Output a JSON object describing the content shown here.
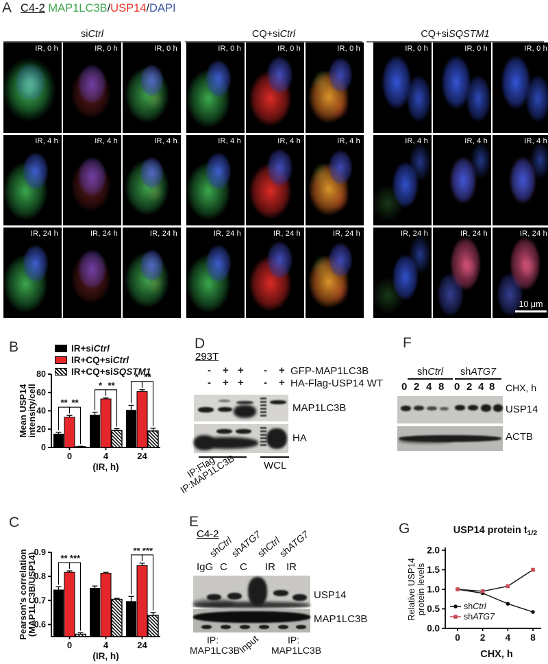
{
  "colors": {
    "red_bar": "#e5262b",
    "line_red": "#c94b57",
    "stain_green": "#3fa54e",
    "stain_red": "#e8332a",
    "stain_blue": "#3a53a4"
  },
  "panel_a": {
    "label": "A",
    "cell_line": "C4-2",
    "stains": {
      "s1": "MAP1LC3B",
      "sep1": "/",
      "s2": "USP14",
      "sep2": "/",
      "s3": "DAPI"
    },
    "groups": [
      {
        "segments": [
          {
            "t": "si"
          },
          {
            "t": "Ctrl",
            "i": true
          }
        ]
      },
      {
        "segments": [
          {
            "t": "CQ+si"
          },
          {
            "t": "Ctrl",
            "i": true
          }
        ]
      },
      {
        "segments": [
          {
            "t": "CQ+si"
          },
          {
            "t": "SQSTM1",
            "i": true
          }
        ]
      }
    ],
    "tiles": [
      {
        "label": "IR, 0 h",
        "look": "green"
      },
      {
        "label": "IR, 0 h",
        "look": "redNuc"
      },
      {
        "label": "IR, 0 h",
        "look": "greenMix"
      },
      {
        "label": "IR, 0 h",
        "look": "greenBlue"
      },
      {
        "label": "IR, 0 h",
        "look": "redCyto"
      },
      {
        "label": "IR, 0 h",
        "look": "orange"
      },
      {
        "label": "IR, 0 h",
        "look": "blue"
      },
      {
        "label": "IR, 0 h",
        "look": "blue"
      },
      {
        "label": "IR, 0 h",
        "look": "blue"
      },
      {
        "label": "IR, 4 h",
        "look": "greenBlue"
      },
      {
        "label": "IR, 4 h",
        "look": "redNuc"
      },
      {
        "label": "IR, 4 h",
        "look": "greenMix"
      },
      {
        "label": "IR, 4 h",
        "look": "greenBlue"
      },
      {
        "label": "IR, 4 h",
        "look": "redCyto"
      },
      {
        "label": "IR, 4 h",
        "look": "orange"
      },
      {
        "label": "IR, 4 h",
        "look": "blueFaintGreen"
      },
      {
        "label": "IR, 4 h",
        "look": "bluePink"
      },
      {
        "label": "IR, 4 h",
        "look": "bluePink"
      },
      {
        "label": "IR, 24 h",
        "look": "greenBlue"
      },
      {
        "label": "IR, 24 h",
        "look": "redNuc"
      },
      {
        "label": "IR, 24 h",
        "look": "greenMix"
      },
      {
        "label": "IR, 24 h",
        "look": "greenBlue"
      },
      {
        "label": "IR, 24 h",
        "look": "redCyto"
      },
      {
        "label": "IR, 24 h",
        "look": "orange"
      },
      {
        "label": "IR, 24 h",
        "look": "blueFaintGreen"
      },
      {
        "label": "IR, 24 h",
        "look": "pinkNuc"
      },
      {
        "label": "IR, 24 h",
        "look": "pinkNuc"
      }
    ],
    "scale_bar_label": "10 μm"
  },
  "panel_b": {
    "label": "B",
    "legend": [
      {
        "style": "black",
        "segments": [
          {
            "t": "IR+si"
          },
          {
            "t": "Ctrl",
            "i": true
          }
        ]
      },
      {
        "style": "red",
        "segments": [
          {
            "t": "IR+CQ+si"
          },
          {
            "t": "Ctrl",
            "i": true
          }
        ]
      },
      {
        "style": "hatch",
        "segments": [
          {
            "t": "IR+CQ+si"
          },
          {
            "t": "SQSTM1",
            "i": true
          }
        ]
      }
    ],
    "chart_data": {
      "type": "bar",
      "categories": [
        "0",
        "4",
        "24"
      ],
      "xlabel": "(IR, h)",
      "ylabel_lines": [
        "Mean USP14",
        "intensity/cell"
      ],
      "ylim": [
        0,
        80
      ],
      "yticks": [
        0,
        20,
        40,
        60,
        80
      ],
      "ytick_labels": [
        "0",
        "20",
        "40",
        "60",
        "80"
      ],
      "series": [
        {
          "name": "IR+siCtrl",
          "style": "black",
          "values": [
            15,
            35.5,
            41
          ],
          "errors": [
            1.5,
            3,
            5
          ]
        },
        {
          "name": "IR+CQ+siCtrl",
          "style": "red",
          "values": [
            33,
            53,
            61
          ],
          "errors": [
            2,
            1,
            2
          ]
        },
        {
          "name": "IR+CQ+siSQSTM1",
          "style": "hatch",
          "values": [
            0.8,
            18.5,
            18
          ],
          "errors": [
            0.5,
            2,
            3
          ]
        }
      ],
      "sig": [
        {
          "group": 0,
          "pairs": [
            {
              "a": 0,
              "b": 1,
              "label": "**"
            },
            {
              "a": 1,
              "b": 2,
              "label": "**"
            }
          ]
        },
        {
          "group": 1,
          "pairs": [
            {
              "a": 0,
              "b": 1,
              "label": "*"
            },
            {
              "a": 1,
              "b": 2,
              "label": "**"
            }
          ]
        },
        {
          "group": 2,
          "pairs": [
            {
              "a": 0,
              "b": 1,
              "label": "*"
            },
            {
              "a": 1,
              "b": 2,
              "label": "**"
            }
          ]
        }
      ]
    }
  },
  "panel_c": {
    "label": "C",
    "chart_data": {
      "type": "bar",
      "categories": [
        "0",
        "4",
        "24"
      ],
      "xlabel": "(IR, h)",
      "ylabel_lines": [
        "Pearson's correlation",
        "(MAP1LC3B/USP14)"
      ],
      "ylim": [
        0.55,
        0.9
      ],
      "yticks": [
        0.6,
        0.7,
        0.8,
        0.9
      ],
      "ytick_labels": [
        "0.6",
        "0.7",
        "0.8",
        "0.9"
      ],
      "series": [
        {
          "name": "IR+siCtrl",
          "style": "black",
          "values": [
            0.745,
            0.752,
            0.697
          ],
          "errors": [
            0.012,
            0.008,
            0.02
          ]
        },
        {
          "name": "IR+CQ+siCtrl",
          "style": "red",
          "values": [
            0.817,
            0.813,
            0.845
          ],
          "errors": [
            0.006,
            0.004,
            0.01
          ]
        },
        {
          "name": "IR+CQ+siSQSTM1",
          "style": "hatch",
          "values": [
            0.56,
            0.705,
            0.638
          ],
          "errors": [
            0.006,
            0.004,
            0.012
          ]
        }
      ],
      "sig": [
        {
          "group": 0,
          "pairs": [
            {
              "a": 0,
              "b": 1,
              "label": "**"
            },
            {
              "a": 1,
              "b": 2,
              "label": "***"
            }
          ]
        },
        {
          "group": 2,
          "pairs": [
            {
              "a": 0,
              "b": 1,
              "label": "**"
            },
            {
              "a": 1,
              "b": 2,
              "label": "***"
            }
          ]
        }
      ]
    }
  },
  "panel_d": {
    "label": "D",
    "cell_line": "293T",
    "cond_rows": [
      {
        "values": [
          "-",
          "+",
          "+",
          "-",
          "+"
        ],
        "label": "GFP-MAP1LC3B"
      },
      {
        "values": [
          "-",
          "+",
          "+",
          "-",
          "+"
        ],
        "label": "HA-Flag-USP14 WT"
      }
    ],
    "blots": [
      {
        "label": "MAP1LC3B"
      },
      {
        "label": "HA"
      }
    ],
    "ip_flag": "IP:Flag",
    "ip_map": "IP:MAP1LC3B",
    "wcl": "WCL"
  },
  "panel_e": {
    "label": "E",
    "cell_line": "C4-2",
    "col_headers": [
      {
        "segments": [
          {
            "t": "sh"
          },
          {
            "t": "Ctrl",
            "i": true
          }
        ]
      },
      {
        "segments": [
          {
            "t": "sh"
          },
          {
            "t": "ATG7",
            "i": true
          }
        ]
      },
      {
        "segments": [
          {
            "t": "sh"
          },
          {
            "t": "Ctrl",
            "i": true
          }
        ]
      },
      {
        "segments": [
          {
            "t": "sh"
          },
          {
            "t": "ATG7",
            "i": true
          }
        ]
      }
    ],
    "lanes": [
      "IgG",
      "C",
      "C",
      "IR",
      "IR"
    ],
    "blots": [
      {
        "label": "USP14"
      },
      {
        "label": "MAP1LC3B"
      }
    ],
    "bottom": {
      "ip1a": "IP:",
      "ip1b": "MAP1LC3B",
      "input": "Input",
      "ip2a": "IP:",
      "ip2b": "MAP1LC3B"
    }
  },
  "panel_f": {
    "label": "F",
    "groups": [
      {
        "segments": [
          {
            "t": "sh"
          },
          {
            "t": "Ctrl",
            "i": true
          }
        ]
      },
      {
        "segments": [
          {
            "t": "sh"
          },
          {
            "t": "ATG7",
            "i": true
          }
        ]
      }
    ],
    "lanes": [
      "0",
      "2",
      "4",
      "8",
      "0",
      "2",
      "4",
      "8"
    ],
    "time_label": "CHX, h",
    "blots": [
      {
        "label": "USP14"
      },
      {
        "label": "ACTB"
      }
    ]
  },
  "panel_g": {
    "label": "G",
    "chart_data": {
      "type": "line",
      "title_main": "USP14 protein t",
      "title_sub": "1/2",
      "x": [
        0,
        2,
        4,
        8
      ],
      "xtick_labels": [
        "0",
        "2",
        "4",
        "8"
      ],
      "xlabel": "CHX, h",
      "ylabel_lines": [
        "Relative USP14",
        "protein levels"
      ],
      "ylim": [
        0,
        2
      ],
      "yticks": [
        0,
        0.5,
        1,
        1.5,
        2
      ],
      "ytick_labels": [
        "0.0",
        "0.5",
        "1.0",
        "1.5",
        "2.0"
      ],
      "series": [
        {
          "name": "shCtrl",
          "segments": [
            {
              "t": "sh"
            },
            {
              "t": "Ctrl",
              "i": true
            }
          ],
          "color": "#111111",
          "marker": "circle",
          "values": [
            1.0,
            0.9,
            0.63,
            0.42
          ]
        },
        {
          "name": "shATG7",
          "segments": [
            {
              "t": "sh"
            },
            {
              "t": "ATG7",
              "i": true
            }
          ],
          "color": "#c94b57",
          "marker": "square",
          "values": [
            1.0,
            0.95,
            1.08,
            1.5
          ]
        }
      ]
    }
  }
}
